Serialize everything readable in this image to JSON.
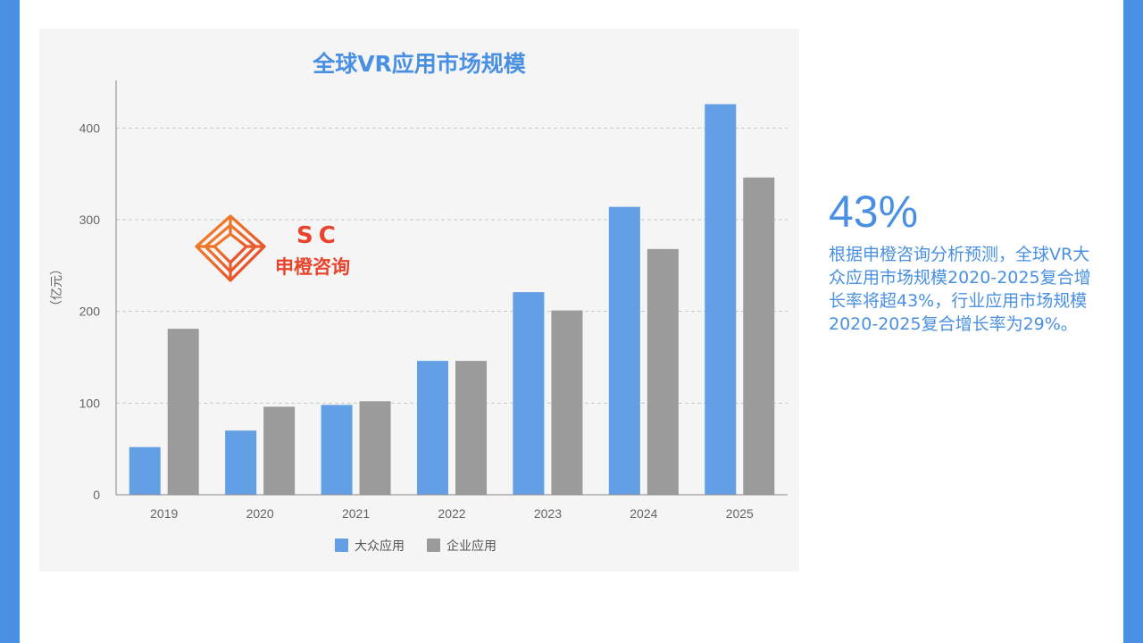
{
  "colors": {
    "accent": "#4a90e2",
    "series_public": "#629fe5",
    "series_enterprise": "#9b9b9b",
    "panel_bg": "#f5f5f5",
    "logo_orange": "#f08a2a",
    "logo_red": "#e8432b"
  },
  "logo": {
    "letters": "SC",
    "name": "申橙咨询"
  },
  "stat": {
    "value": "43%",
    "description": "根据申橙咨询分析预测，全球VR大众应用市场规模2020-2025复合增长率将超43%，行业应用市场规模2020-2025复合增长率为29%。"
  },
  "chart_data": {
    "type": "bar",
    "title": "全球VR应用市场规模",
    "xlabel": "",
    "ylabel": "（亿元）",
    "categories": [
      "2019",
      "2020",
      "2021",
      "2022",
      "2023",
      "2024",
      "2025"
    ],
    "series": [
      {
        "name": "大众应用",
        "values": [
          52,
          70,
          98,
          146,
          221,
          314,
          426
        ]
      },
      {
        "name": "企业应用",
        "values": [
          181,
          96,
          102,
          146,
          201,
          268,
          346
        ]
      }
    ],
    "ylim": [
      0,
      450
    ],
    "yticks": [
      0,
      100,
      200,
      300,
      400
    ],
    "grid": true,
    "legend": "bottom"
  }
}
